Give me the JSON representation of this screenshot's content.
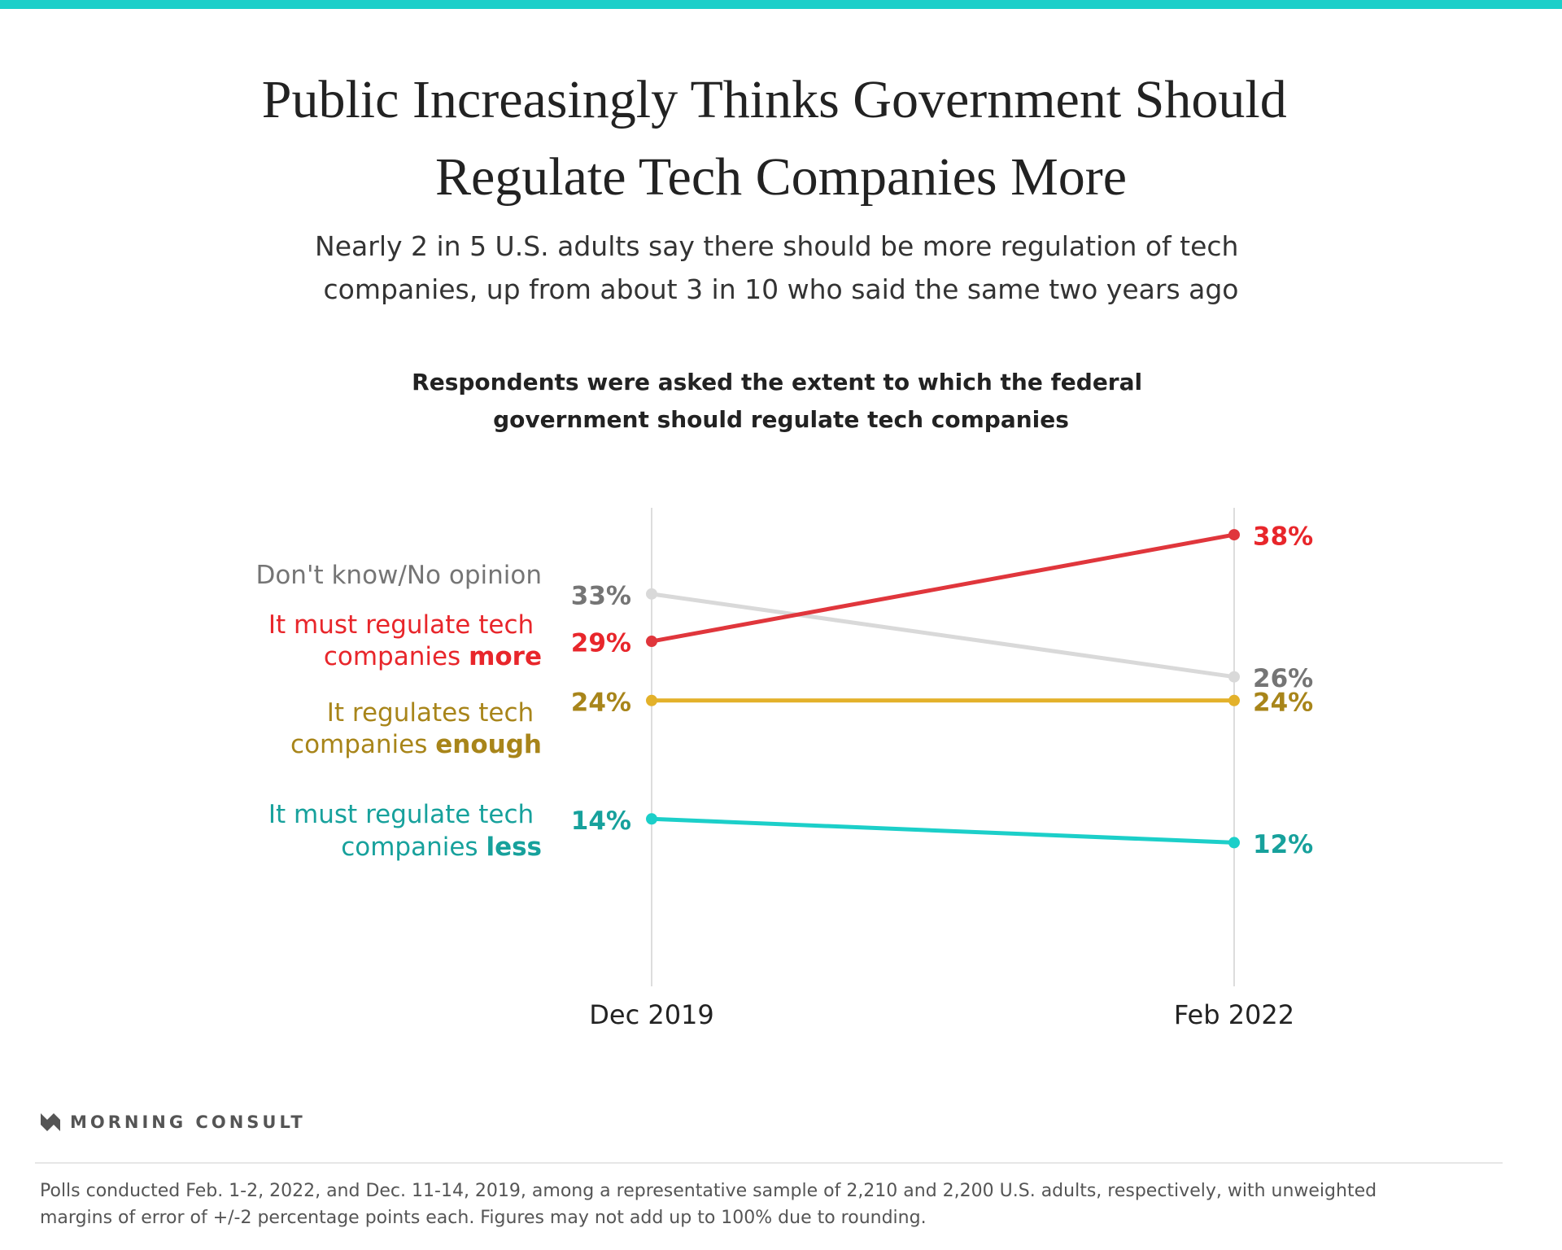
{
  "chart_data": {
    "type": "line",
    "title": "Public Increasingly Thinks Government Should Regulate Tech Companies More",
    "subtitle": "Nearly 2 in 5 U.S. adults say there should be more regulation of tech companies, up from about 3 in 10 who said the same two years ago",
    "question": "Respondents were asked the extent to which the federal government should regulate tech companies",
    "categories": [
      "Dec 2019",
      "Feb 2022"
    ],
    "ylim": [
      0,
      40
    ],
    "series": [
      {
        "name": "Don't know/No opinion",
        "color": "#d9d9d9",
        "label_color": "#757575",
        "values": [
          33,
          26
        ],
        "value_labels": [
          "33%",
          "26%"
        ]
      },
      {
        "name": "It must regulate tech companies more",
        "color": "#e0363c",
        "label_color": "#e8262b",
        "values": [
          29,
          38
        ],
        "value_labels": [
          "29%",
          "38%"
        ]
      },
      {
        "name": "It regulates tech companies enough",
        "color": "#e3b12a",
        "label_color": "#a8851a",
        "values": [
          24,
          24
        ],
        "value_labels": [
          "24%",
          "24%"
        ]
      },
      {
        "name": "It must regulate tech companies less",
        "color": "#1ccfc9",
        "label_color": "#17a19c",
        "values": [
          14,
          12
        ],
        "value_labels": [
          "14%",
          "12%"
        ]
      }
    ],
    "source": "MORNING CONSULT",
    "note": "Polls conducted Feb. 1-2, 2022, and Dec. 11-14, 2019, among a representative sample of 2,210 and 2,200 U.S. adults, respectively, with unweighted margins of error of +/-2 percentage points each. Figures may not add up to 100% due to rounding."
  }
}
